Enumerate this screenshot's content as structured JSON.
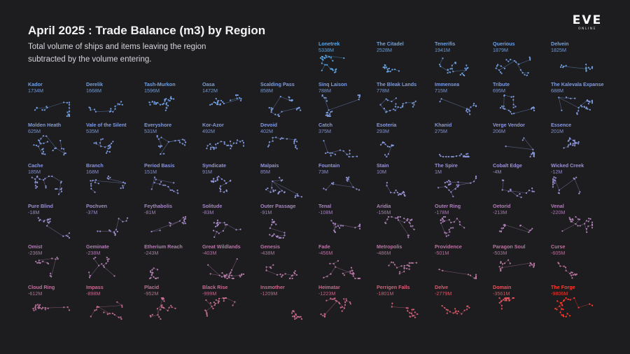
{
  "header": {
    "title": "April 2025 : Trade Balance (m3) by Region",
    "subtitle_line1": "Total volume of ships and items leaving the region",
    "subtitle_line2": "subtracted by the volume entering.",
    "logo_text": "EVE",
    "logo_subtext": "ONLINE"
  },
  "colors": {
    "background": "#1d1d1f",
    "positive_high": "#5aa8ec",
    "neutral": "#9a92d6",
    "negative_high": "#ff3b30"
  },
  "chart_data": {
    "type": "small-multiples",
    "title": "April 2025 : Trade Balance (m3) by Region",
    "unit": "m3",
    "regions": [
      {
        "name": "Lonetrek",
        "label": "5338M",
        "value": 5338
      },
      {
        "name": "The Citadel",
        "label": "2528M",
        "value": 2528
      },
      {
        "name": "Tenerifis",
        "label": "1941M",
        "value": 1941
      },
      {
        "name": "Querious",
        "label": "1879M",
        "value": 1879
      },
      {
        "name": "Delvein",
        "label": "1825M",
        "value": 1825
      },
      {
        "name": "Kador",
        "label": "1734M",
        "value": 1734
      },
      {
        "name": "Derelik",
        "label": "1668M",
        "value": 1668
      },
      {
        "name": "Tash-Murkon",
        "label": "1596M",
        "value": 1596
      },
      {
        "name": "Oasa",
        "label": "1472M",
        "value": 1472
      },
      {
        "name": "Scalding Pass",
        "label": "858M",
        "value": 858
      },
      {
        "name": "Sinq Laison",
        "label": "788M",
        "value": 788
      },
      {
        "name": "The Bleak Lands",
        "label": "778M",
        "value": 778
      },
      {
        "name": "Immensea",
        "label": "715M",
        "value": 715
      },
      {
        "name": "Tribute",
        "label": "695M",
        "value": 695
      },
      {
        "name": "The Kalevala Expanse",
        "label": "688M",
        "value": 688
      },
      {
        "name": "Molden Heath",
        "label": "625M",
        "value": 625
      },
      {
        "name": "Vale of the Silent",
        "label": "535M",
        "value": 535
      },
      {
        "name": "Everyshore",
        "label": "531M",
        "value": 531
      },
      {
        "name": "Kor-Azor",
        "label": "492M",
        "value": 492
      },
      {
        "name": "Devoid",
        "label": "402M",
        "value": 402
      },
      {
        "name": "Catch",
        "label": "375M",
        "value": 375
      },
      {
        "name": "Esoteria",
        "label": "293M",
        "value": 293
      },
      {
        "name": "Khanid",
        "label": "275M",
        "value": 275
      },
      {
        "name": "Verge Vendor",
        "label": "206M",
        "value": 206
      },
      {
        "name": "Essence",
        "label": "201M",
        "value": 201
      },
      {
        "name": "Cache",
        "label": "185M",
        "value": 185
      },
      {
        "name": "Branch",
        "label": "168M",
        "value": 168
      },
      {
        "name": "Period Basis",
        "label": "151M",
        "value": 151
      },
      {
        "name": "Syndicate",
        "label": "91M",
        "value": 91
      },
      {
        "name": "Malpais",
        "label": "85M",
        "value": 85
      },
      {
        "name": "Fountain",
        "label": "73M",
        "value": 73
      },
      {
        "name": "Stain",
        "label": "10M",
        "value": 10
      },
      {
        "name": "The Spire",
        "label": "1M",
        "value": 1
      },
      {
        "name": "Cobalt Edge",
        "label": "-4M",
        "value": -4
      },
      {
        "name": "Wicked Creek",
        "label": "-12M",
        "value": -12
      },
      {
        "name": "Pure Blind",
        "label": "-18M",
        "value": -18
      },
      {
        "name": "Pochven",
        "label": "-37M",
        "value": -37
      },
      {
        "name": "Feythabolis",
        "label": "-81M",
        "value": -81
      },
      {
        "name": "Solitude",
        "label": "-83M",
        "value": -83
      },
      {
        "name": "Outer Passage",
        "label": "-91M",
        "value": -91
      },
      {
        "name": "Tenal",
        "label": "-108M",
        "value": -108
      },
      {
        "name": "Aridia",
        "label": "-156M",
        "value": -156
      },
      {
        "name": "Outer Ring",
        "label": "-178M",
        "value": -178
      },
      {
        "name": "Oetorid",
        "label": "-213M",
        "value": -213
      },
      {
        "name": "Venal",
        "label": "-220M",
        "value": -220
      },
      {
        "name": "Omist",
        "label": "-236M",
        "value": -236
      },
      {
        "name": "Geminate",
        "label": "-238M",
        "value": -238
      },
      {
        "name": "Etherium Reach",
        "label": "-243M",
        "value": -243
      },
      {
        "name": "Great Wildlands",
        "label": "-403M",
        "value": -403
      },
      {
        "name": "Genesis",
        "label": "-438M",
        "value": -438
      },
      {
        "name": "Fade",
        "label": "-456M",
        "value": -456
      },
      {
        "name": "Metropolis",
        "label": "-486M",
        "value": -486
      },
      {
        "name": "Providence",
        "label": "-501M",
        "value": -501
      },
      {
        "name": "Paragon Soul",
        "label": "-503M",
        "value": -503
      },
      {
        "name": "Curse",
        "label": "-605M",
        "value": -605
      },
      {
        "name": "Cloud Ring",
        "label": "-612M",
        "value": -612
      },
      {
        "name": "Impass",
        "label": "-898M",
        "value": -898
      },
      {
        "name": "Placid",
        "label": "-952M",
        "value": -952
      },
      {
        "name": "Black Rise",
        "label": "-999M",
        "value": -999
      },
      {
        "name": "Insmother",
        "label": "-1209M",
        "value": -1209
      },
      {
        "name": "Heimatar",
        "label": "-1223M",
        "value": -1223
      },
      {
        "name": "Perrigen Falls",
        "label": "-1801M",
        "value": -1801
      },
      {
        "name": "Delve",
        "label": "-2779M",
        "value": -2779
      },
      {
        "name": "Domain",
        "label": "-3561M",
        "value": -3561
      },
      {
        "name": "The Forge",
        "label": "-9806M",
        "value": -9806
      }
    ]
  }
}
